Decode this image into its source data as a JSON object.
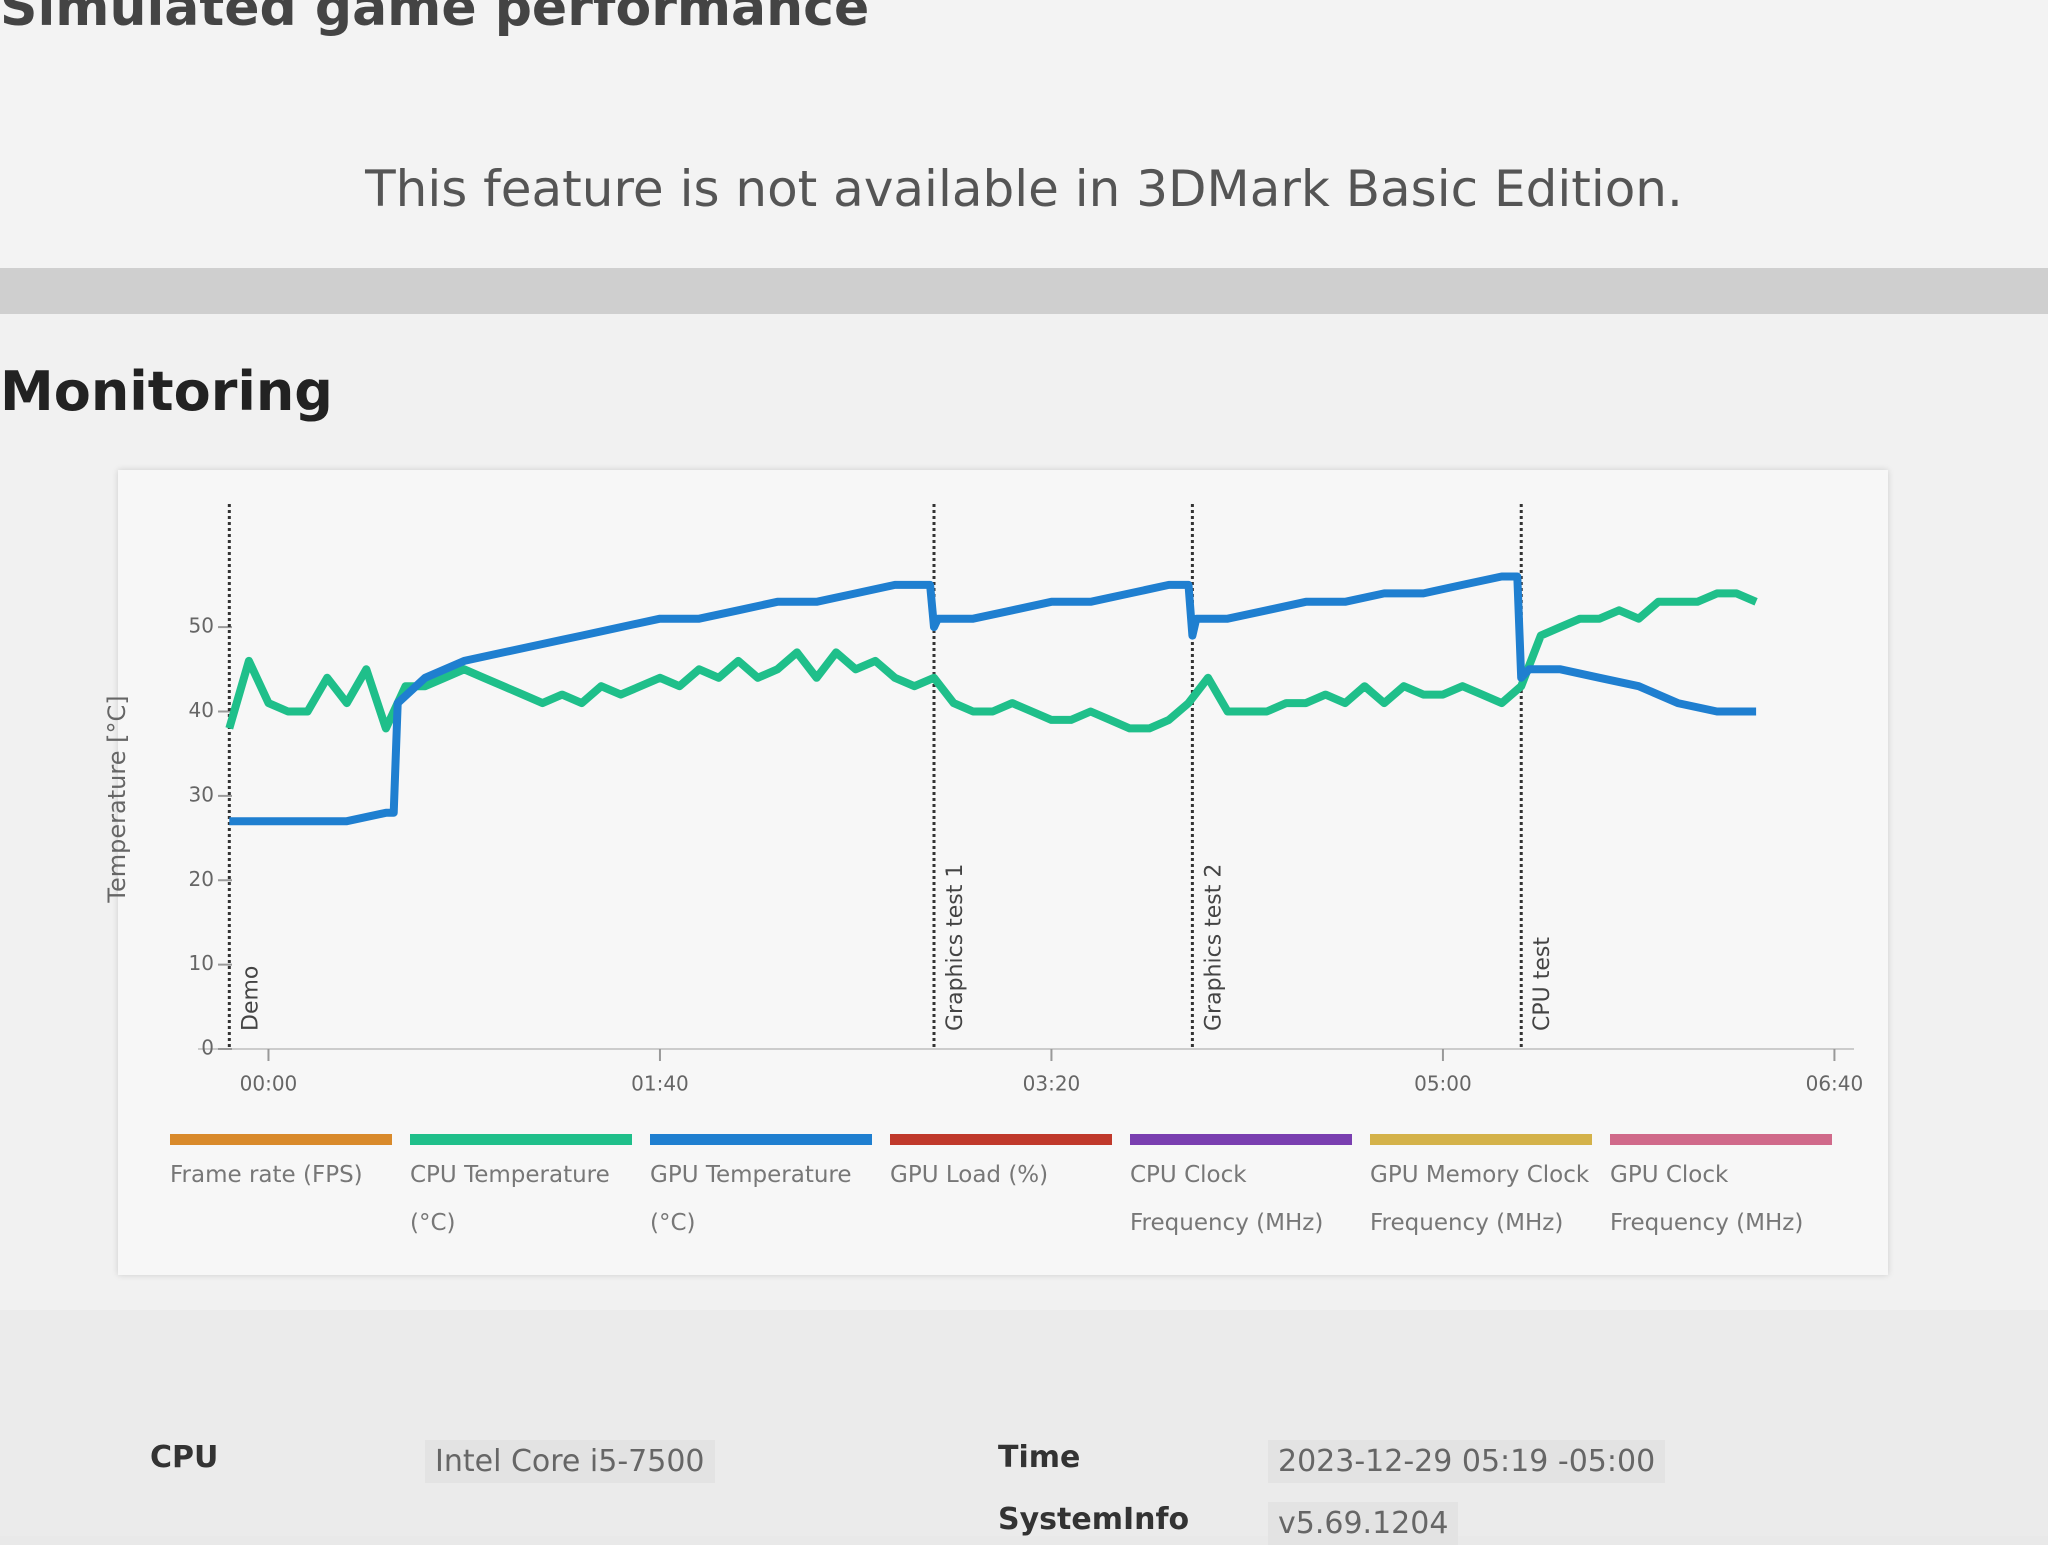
{
  "header": {
    "subtitle": "Simulated game performance",
    "notice": "This feature is not available in 3DMark Basic Edition."
  },
  "section_title": "Monitoring",
  "chart_data": {
    "type": "line",
    "y_label": "Temperature [°C]",
    "xlim": [
      -18,
      405
    ],
    "ylim": [
      0,
      64
    ],
    "xticks": [
      {
        "value": 0,
        "label": "00:00"
      },
      {
        "value": 100,
        "label": "01:40"
      },
      {
        "value": 200,
        "label": "03:20"
      },
      {
        "value": 300,
        "label": "05:00"
      },
      {
        "value": 400,
        "label": "06:40"
      }
    ],
    "yticks": [
      0,
      10,
      20,
      30,
      40,
      50
    ],
    "markers": [
      {
        "label": "Demo",
        "x": -10
      },
      {
        "label": "Graphics test 1",
        "x": 170
      },
      {
        "label": "Graphics test 2",
        "x": 236
      },
      {
        "label": "CPU test",
        "x": 320
      }
    ],
    "series": [
      {
        "name": "Frame rate (FPS)",
        "color": "#d98a2b",
        "x": [],
        "values": []
      },
      {
        "name": "CPU Temperature (°C)",
        "color": "#1fbf8a",
        "x": [
          -10,
          -5,
          0,
          5,
          10,
          15,
          20,
          25,
          30,
          35,
          40,
          45,
          50,
          55,
          60,
          65,
          70,
          75,
          80,
          85,
          90,
          95,
          100,
          105,
          110,
          115,
          120,
          125,
          130,
          135,
          140,
          145,
          150,
          155,
          160,
          165,
          170,
          175,
          180,
          185,
          190,
          195,
          200,
          205,
          210,
          215,
          220,
          225,
          230,
          235,
          240,
          245,
          250,
          255,
          260,
          265,
          270,
          275,
          280,
          285,
          290,
          295,
          300,
          305,
          310,
          315,
          320,
          325,
          330,
          335,
          340,
          345,
          350,
          355,
          360,
          365,
          370,
          375,
          380
        ],
        "values": [
          38,
          46,
          41,
          40,
          40,
          44,
          41,
          45,
          38,
          43,
          43,
          44,
          45,
          44,
          43,
          42,
          41,
          42,
          41,
          43,
          42,
          43,
          44,
          43,
          45,
          44,
          46,
          44,
          45,
          47,
          44,
          47,
          45,
          46,
          44,
          43,
          44,
          41,
          40,
          40,
          41,
          40,
          39,
          39,
          40,
          39,
          38,
          38,
          39,
          41,
          44,
          40,
          40,
          40,
          41,
          41,
          42,
          41,
          43,
          41,
          43,
          42,
          42,
          43,
          42,
          41,
          43,
          49,
          50,
          51,
          51,
          52,
          51,
          53,
          53,
          53,
          54,
          54,
          53
        ]
      },
      {
        "name": "GPU Temperature (°C)",
        "color": "#1f7fd0",
        "x": [
          -10,
          0,
          10,
          20,
          30,
          32,
          33,
          40,
          50,
          60,
          70,
          80,
          90,
          100,
          110,
          120,
          130,
          140,
          150,
          160,
          169,
          170,
          171,
          180,
          190,
          200,
          210,
          220,
          230,
          235,
          236,
          237,
          245,
          255,
          265,
          275,
          285,
          295,
          305,
          315,
          319,
          320,
          322,
          330,
          340,
          350,
          360,
          370,
          380
        ],
        "values": [
          27,
          27,
          27,
          27,
          28,
          28,
          41,
          44,
          46,
          47,
          48,
          49,
          50,
          51,
          51,
          52,
          53,
          53,
          54,
          55,
          55,
          50,
          51,
          51,
          52,
          53,
          53,
          54,
          55,
          55,
          49,
          51,
          51,
          52,
          53,
          53,
          54,
          54,
          55,
          56,
          56,
          44,
          45,
          45,
          44,
          43,
          41,
          40,
          40
        ]
      },
      {
        "name": "GPU Load (%)",
        "color": "#c0392b",
        "x": [],
        "values": []
      },
      {
        "name": "CPU Clock Frequency (MHz)",
        "color": "#7a3fb0",
        "x": [],
        "values": []
      },
      {
        "name": "GPU Memory Clock Frequency (MHz)",
        "color": "#d4b24a",
        "x": [],
        "values": []
      },
      {
        "name": "GPU Clock Frequency (MHz)",
        "color": "#d06a8a",
        "x": [],
        "values": []
      }
    ]
  },
  "info": {
    "rows": [
      [
        "CPU",
        "Intel Core i5-7500",
        "Time",
        "2023-12-29 05:19 -05:00"
      ],
      [
        "",
        "",
        "SystemInfo",
        "v5.69.1204"
      ]
    ]
  }
}
